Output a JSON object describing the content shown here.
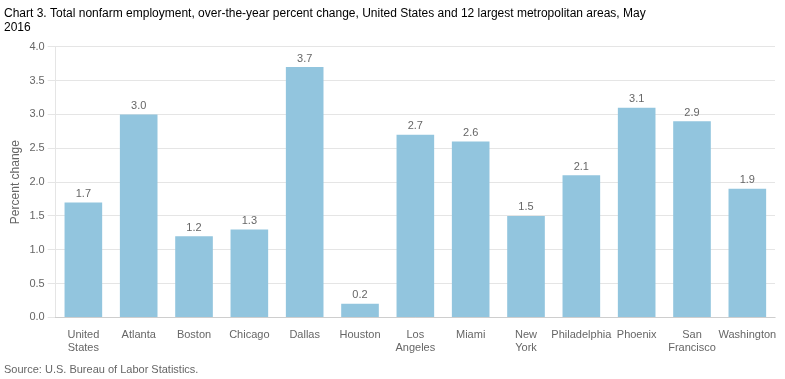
{
  "chart_data": {
    "type": "bar",
    "title": "Chart 3. Total nonfarm employment, over-the-year percent change, United States and 12 largest metropolitan areas, May\n2016",
    "ylabel": "Percent change",
    "annotations": [
      "Source: U.S. Bureau of Labor Statistics."
    ],
    "categories": [
      "United\nStates",
      "Atlanta",
      "Boston",
      "Chicago",
      "Dallas",
      "Houston",
      "Los\nAngeles",
      "Miami",
      "New\nYork",
      "Philadelphia",
      "Phoenix",
      "San\nFrancisco",
      "Washington"
    ],
    "values": [
      1.7,
      3.0,
      1.2,
      1.3,
      3.7,
      0.2,
      2.7,
      2.6,
      1.5,
      2.1,
      3.1,
      2.9,
      1.9
    ],
    "value_labels": [
      "1.7",
      "3.0",
      "1.2",
      "1.3",
      "3.7",
      "0.2",
      "2.7",
      "2.6",
      "1.5",
      "2.1",
      "3.1",
      "2.9",
      "1.9"
    ],
    "color": "#92C5DE",
    "ylim": [
      0,
      4.0
    ],
    "yticks": [
      {
        "value": 0,
        "label": "0.0"
      },
      0.5,
      {
        "value": 1,
        "label": "1.0"
      },
      1.5,
      {
        "value": 2,
        "label": "2.0"
      },
      2.5,
      {
        "value": 3,
        "label": "3.0"
      },
      3.5,
      {
        "value": 4,
        "label": "4.0"
      }
    ],
    "grid": true,
    "data_labels": true,
    "legend": false
  }
}
